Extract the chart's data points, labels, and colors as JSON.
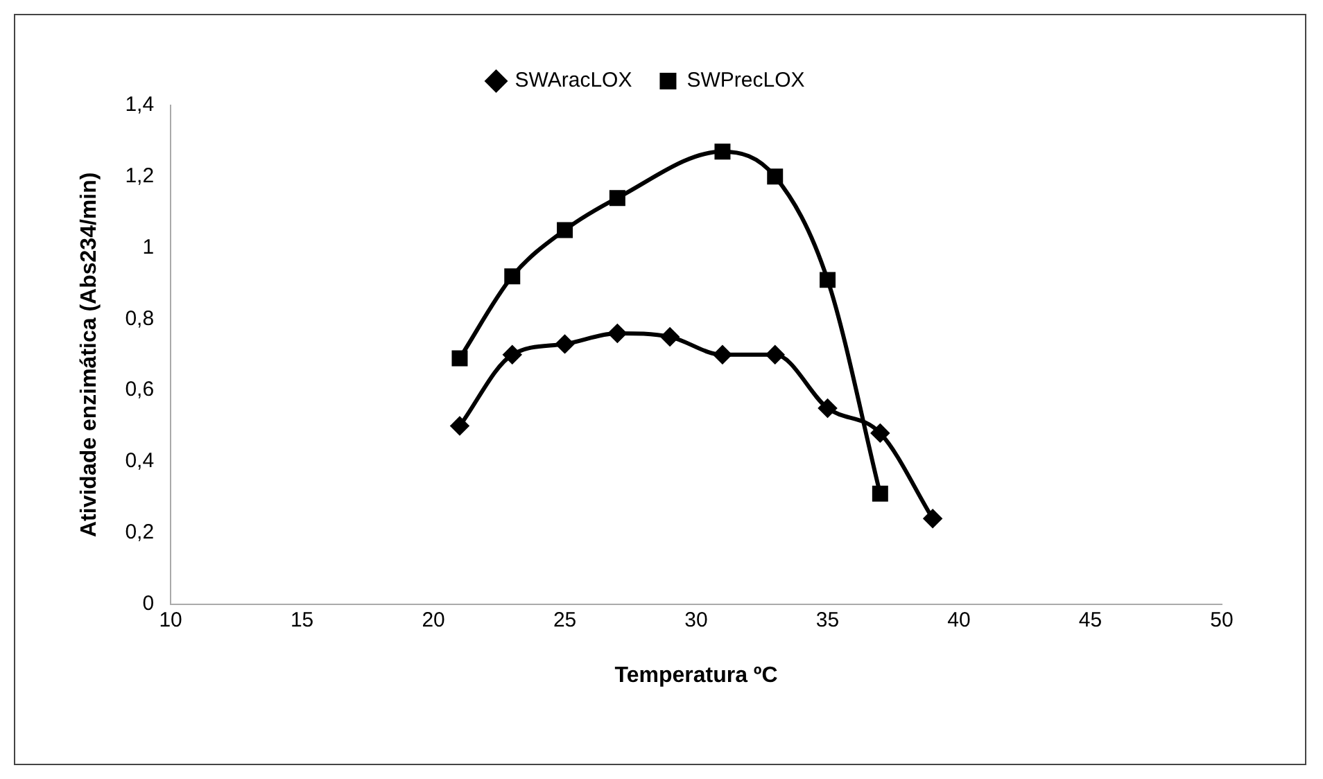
{
  "chart_data": {
    "type": "line",
    "xlabel": "Temperatura ºC",
    "ylabel": "Atividade enzimática (Abs234/min)",
    "series": [
      {
        "name": "SWAracLOX",
        "color": "#000000",
        "marker": "diamond",
        "x": [
          21,
          23,
          25,
          27,
          29,
          31,
          33,
          35,
          37,
          39
        ],
        "values": [
          0.5,
          0.7,
          0.73,
          0.76,
          0.75,
          0.7,
          0.7,
          0.55,
          0.48,
          0.24
        ]
      },
      {
        "name": "SWPrecLOX",
        "color": "#000000",
        "marker": "square",
        "x": [
          21,
          23,
          25,
          27,
          31,
          33,
          35,
          37
        ],
        "values": [
          0.69,
          0.92,
          1.05,
          1.14,
          1.27,
          1.2,
          0.91,
          0.31
        ]
      }
    ],
    "xlim": [
      10,
      50
    ],
    "xticks": [
      10,
      15,
      20,
      25,
      30,
      35,
      40,
      45,
      50
    ],
    "ylim": [
      0,
      1.4
    ],
    "yticks": [
      {
        "value": 0,
        "label": "0"
      },
      {
        "value": 0.2,
        "label": "0,2"
      },
      {
        "value": 0.4,
        "label": "0,4"
      },
      {
        "value": 0.6,
        "label": "0,6"
      },
      {
        "value": 0.8,
        "label": "0,8"
      },
      {
        "value": 1,
        "label": "1"
      },
      {
        "value": 1.2,
        "label": "1,2"
      },
      {
        "value": 1.4,
        "label": "1,4"
      }
    ],
    "grid": false,
    "legend": "top"
  }
}
